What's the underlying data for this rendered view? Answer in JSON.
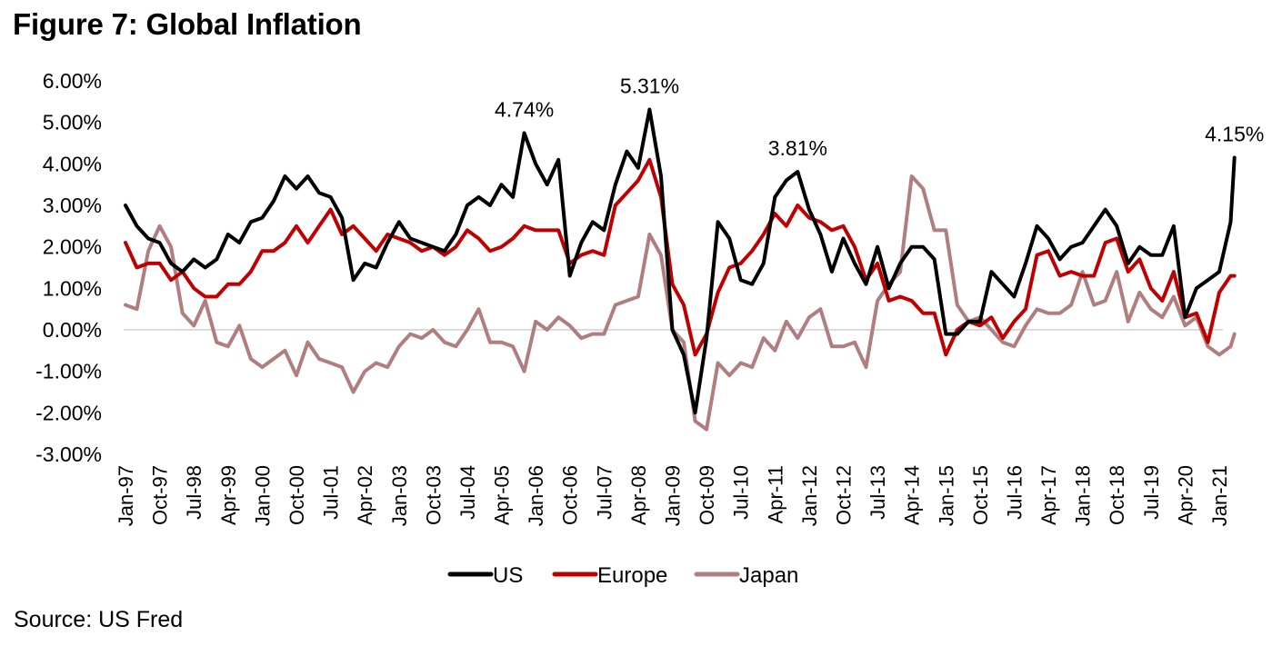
{
  "title": "Figure 7: Global Inflation",
  "source": "Source: US Fred",
  "chart_data": {
    "type": "line",
    "title": "Figure 7: Global Inflation",
    "xlabel": "",
    "ylabel": "",
    "ylim": [
      -3.0,
      6.0
    ],
    "y_ticks": [
      6.0,
      5.0,
      4.0,
      3.0,
      2.0,
      1.0,
      0.0,
      -1.0,
      -2.0,
      -3.0
    ],
    "y_tick_labels": [
      "6.00%",
      "5.00%",
      "4.00%",
      "3.00%",
      "2.00%",
      "1.00%",
      "0.00%",
      "-1.00%",
      "-2.00%",
      "-3.00%"
    ],
    "x_tick_labels": [
      "Jan-97",
      "Oct-97",
      "Jul-98",
      "Apr-99",
      "Jan-00",
      "Oct-00",
      "Jul-01",
      "Apr-02",
      "Jan-03",
      "Oct-03",
      "Jul-04",
      "Apr-05",
      "Jan-06",
      "Oct-06",
      "Jul-07",
      "Apr-08",
      "Jan-09",
      "Oct-09",
      "Jul-10",
      "Apr-11",
      "Jan-12",
      "Oct-12",
      "Jul-13",
      "Apr-14",
      "Jan-15",
      "Oct-15",
      "Jul-16",
      "Apr-17",
      "Jan-18",
      "Oct-18",
      "Jul-19",
      "Apr-20",
      "Jan-21"
    ],
    "grid": "zero-line only",
    "legend_position": "bottom",
    "x": [
      "Jan-97",
      "Apr-97",
      "Jul-97",
      "Oct-97",
      "Jan-98",
      "Apr-98",
      "Jul-98",
      "Oct-98",
      "Jan-99",
      "Apr-99",
      "Jul-99",
      "Oct-99",
      "Jan-00",
      "Apr-00",
      "Jul-00",
      "Oct-00",
      "Jan-01",
      "Apr-01",
      "Jul-01",
      "Oct-01",
      "Jan-02",
      "Apr-02",
      "Jul-02",
      "Oct-02",
      "Jan-03",
      "Apr-03",
      "Jul-03",
      "Oct-03",
      "Jan-04",
      "Apr-04",
      "Jul-04",
      "Oct-04",
      "Jan-05",
      "Apr-05",
      "Jul-05",
      "Oct-05",
      "Jan-06",
      "Apr-06",
      "Jul-06",
      "Oct-06",
      "Jan-07",
      "Apr-07",
      "Jul-07",
      "Oct-07",
      "Jan-08",
      "Apr-08",
      "Jul-08",
      "Oct-08",
      "Jan-09",
      "Apr-09",
      "Jul-09",
      "Oct-09",
      "Jan-10",
      "Apr-10",
      "Jul-10",
      "Oct-10",
      "Jan-11",
      "Apr-11",
      "Jul-11",
      "Oct-11",
      "Jan-12",
      "Apr-12",
      "Jul-12",
      "Oct-12",
      "Jan-13",
      "Apr-13",
      "Jul-13",
      "Oct-13",
      "Jan-14",
      "Apr-14",
      "Jul-14",
      "Oct-14",
      "Jan-15",
      "Apr-15",
      "Jul-15",
      "Oct-15",
      "Jan-16",
      "Apr-16",
      "Jul-16",
      "Oct-16",
      "Jan-17",
      "Apr-17",
      "Jul-17",
      "Oct-17",
      "Jan-18",
      "Apr-18",
      "Jul-18",
      "Oct-18",
      "Jan-19",
      "Apr-19",
      "Jul-19",
      "Oct-19",
      "Jan-20",
      "Apr-20",
      "Jul-20",
      "Oct-20",
      "Jan-21",
      "Apr-21",
      "May-21"
    ],
    "series": [
      {
        "name": "US",
        "color": "#000000",
        "values": [
          3.0,
          2.5,
          2.2,
          2.1,
          1.6,
          1.4,
          1.7,
          1.5,
          1.7,
          2.3,
          2.1,
          2.6,
          2.7,
          3.1,
          3.7,
          3.4,
          3.7,
          3.3,
          3.2,
          2.7,
          1.2,
          1.6,
          1.5,
          2.1,
          2.6,
          2.2,
          2.1,
          2.0,
          1.9,
          2.3,
          3.0,
          3.2,
          3.0,
          3.5,
          3.2,
          4.74,
          4.0,
          3.5,
          4.1,
          1.3,
          2.1,
          2.6,
          2.4,
          3.5,
          4.3,
          3.9,
          5.31,
          3.7,
          0.0,
          -0.6,
          -2.0,
          -0.2,
          2.6,
          2.2,
          1.2,
          1.1,
          1.6,
          3.2,
          3.6,
          3.81,
          2.9,
          2.3,
          1.4,
          2.2,
          1.6,
          1.1,
          2.0,
          1.0,
          1.6,
          2.0,
          2.0,
          1.7,
          -0.1,
          -0.1,
          0.2,
          0.2,
          1.4,
          1.1,
          0.8,
          1.6,
          2.5,
          2.2,
          1.7,
          2.0,
          2.1,
          2.5,
          2.9,
          2.5,
          1.6,
          2.0,
          1.8,
          1.8,
          2.5,
          0.3,
          1.0,
          1.2,
          1.4,
          2.6,
          4.15
        ]
      },
      {
        "name": "Europe",
        "color": "#C00000",
        "values": [
          2.1,
          1.5,
          1.6,
          1.6,
          1.2,
          1.4,
          1.0,
          0.8,
          0.8,
          1.1,
          1.1,
          1.4,
          1.9,
          1.9,
          2.1,
          2.5,
          2.1,
          2.5,
          2.9,
          2.3,
          2.5,
          2.2,
          1.9,
          2.3,
          2.2,
          2.1,
          1.9,
          2.0,
          1.8,
          2.0,
          2.4,
          2.2,
          1.9,
          2.0,
          2.2,
          2.5,
          2.4,
          2.4,
          2.4,
          1.6,
          1.8,
          1.9,
          1.8,
          3.0,
          3.3,
          3.6,
          4.1,
          3.2,
          1.1,
          0.6,
          -0.6,
          -0.1,
          0.9,
          1.5,
          1.6,
          1.9,
          2.3,
          2.8,
          2.5,
          3.0,
          2.7,
          2.6,
          2.4,
          2.5,
          2.0,
          1.2,
          1.6,
          0.7,
          0.8,
          0.7,
          0.4,
          0.4,
          -0.6,
          0.0,
          0.2,
          0.1,
          0.3,
          -0.2,
          0.2,
          0.5,
          1.8,
          1.9,
          1.3,
          1.4,
          1.3,
          1.3,
          2.1,
          2.2,
          1.4,
          1.7,
          1.0,
          0.7,
          1.4,
          0.3,
          0.4,
          -0.3,
          0.9,
          1.3,
          1.3
        ]
      },
      {
        "name": "Japan",
        "color": "#B07E7E",
        "values": [
          0.6,
          0.5,
          1.9,
          2.5,
          2.0,
          0.4,
          0.1,
          0.7,
          -0.3,
          -0.4,
          0.1,
          -0.7,
          -0.9,
          -0.7,
          -0.5,
          -1.1,
          -0.3,
          -0.7,
          -0.8,
          -0.9,
          -1.5,
          -1.0,
          -0.8,
          -0.9,
          -0.4,
          -0.1,
          -0.2,
          0.0,
          -0.3,
          -0.4,
          0.0,
          0.5,
          -0.3,
          -0.3,
          -0.4,
          -1.0,
          0.2,
          0.0,
          0.3,
          0.1,
          -0.2,
          -0.1,
          -0.1,
          0.6,
          0.7,
          0.8,
          2.3,
          1.8,
          0.0,
          -0.3,
          -2.2,
          -2.4,
          -0.8,
          -1.1,
          -0.8,
          -0.9,
          -0.2,
          -0.5,
          0.2,
          -0.2,
          0.3,
          0.5,
          -0.4,
          -0.4,
          -0.3,
          -0.9,
          0.7,
          1.1,
          1.4,
          3.7,
          3.4,
          2.4,
          2.4,
          0.6,
          0.2,
          0.3,
          0.0,
          -0.3,
          -0.4,
          0.1,
          0.5,
          0.4,
          0.4,
          0.6,
          1.4,
          0.6,
          0.7,
          1.4,
          0.2,
          0.9,
          0.5,
          0.3,
          0.8,
          0.1,
          0.3,
          -0.4,
          -0.6,
          -0.4,
          -0.1
        ]
      }
    ],
    "annotations": [
      {
        "x": "Oct-05",
        "y": 4.74,
        "label": "4.74%"
      },
      {
        "x": "Jul-08",
        "y": 5.31,
        "label": "5.31%"
      },
      {
        "x": "Oct-11",
        "y": 3.81,
        "label": "3.81%"
      },
      {
        "x": "May-21",
        "y": 4.15,
        "label": "4.15%"
      }
    ]
  }
}
